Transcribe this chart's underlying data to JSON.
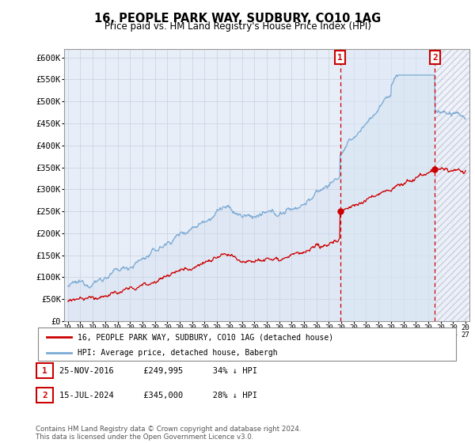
{
  "title": "16, PEOPLE PARK WAY, SUDBURY, CO10 1AG",
  "subtitle": "Price paid vs. HM Land Registry's House Price Index (HPI)",
  "ylabel_ticks": [
    "£0",
    "£50K",
    "£100K",
    "£150K",
    "£200K",
    "£250K",
    "£300K",
    "£350K",
    "£400K",
    "£450K",
    "£500K",
    "£550K",
    "£600K"
  ],
  "ytick_vals": [
    0,
    50000,
    100000,
    150000,
    200000,
    250000,
    300000,
    350000,
    400000,
    450000,
    500000,
    550000,
    600000
  ],
  "ylim": [
    0,
    620000
  ],
  "xmin_year": 1995,
  "xmax_year": 2027,
  "xticks": [
    1995,
    1996,
    1997,
    1998,
    1999,
    2000,
    2001,
    2002,
    2003,
    2004,
    2005,
    2006,
    2007,
    2008,
    2009,
    2010,
    2011,
    2012,
    2013,
    2014,
    2015,
    2016,
    2017,
    2018,
    2019,
    2020,
    2021,
    2022,
    2023,
    2024,
    2025,
    2026,
    2027
  ],
  "hpi_color": "#7aaad4",
  "price_color": "#cc0000",
  "vline1_x": 2016.9,
  "vline2_x": 2024.54,
  "vline_color": "#cc0000",
  "marker1_x": 2016.9,
  "marker1_y": 249995,
  "marker2_x": 2024.54,
  "marker2_y": 345000,
  "marker_color": "#cc0000",
  "legend_line1": "16, PEOPLE PARK WAY, SUDBURY, CO10 1AG (detached house)",
  "legend_line2": "HPI: Average price, detached house, Babergh",
  "table_row1": [
    "1",
    "25-NOV-2016",
    "£249,995",
    "34% ↓ HPI"
  ],
  "table_row2": [
    "2",
    "15-JUL-2024",
    "£345,000",
    "28% ↓ HPI"
  ],
  "footer": "Contains HM Land Registry data © Crown copyright and database right 2024.\nThis data is licensed under the Open Government Licence v3.0.",
  "plot_bg": "#e8eef8",
  "hatch_region_color": "#d0d8e8",
  "grid_color": "#c8d0e0",
  "hpi_fill_color": "#cddaec"
}
